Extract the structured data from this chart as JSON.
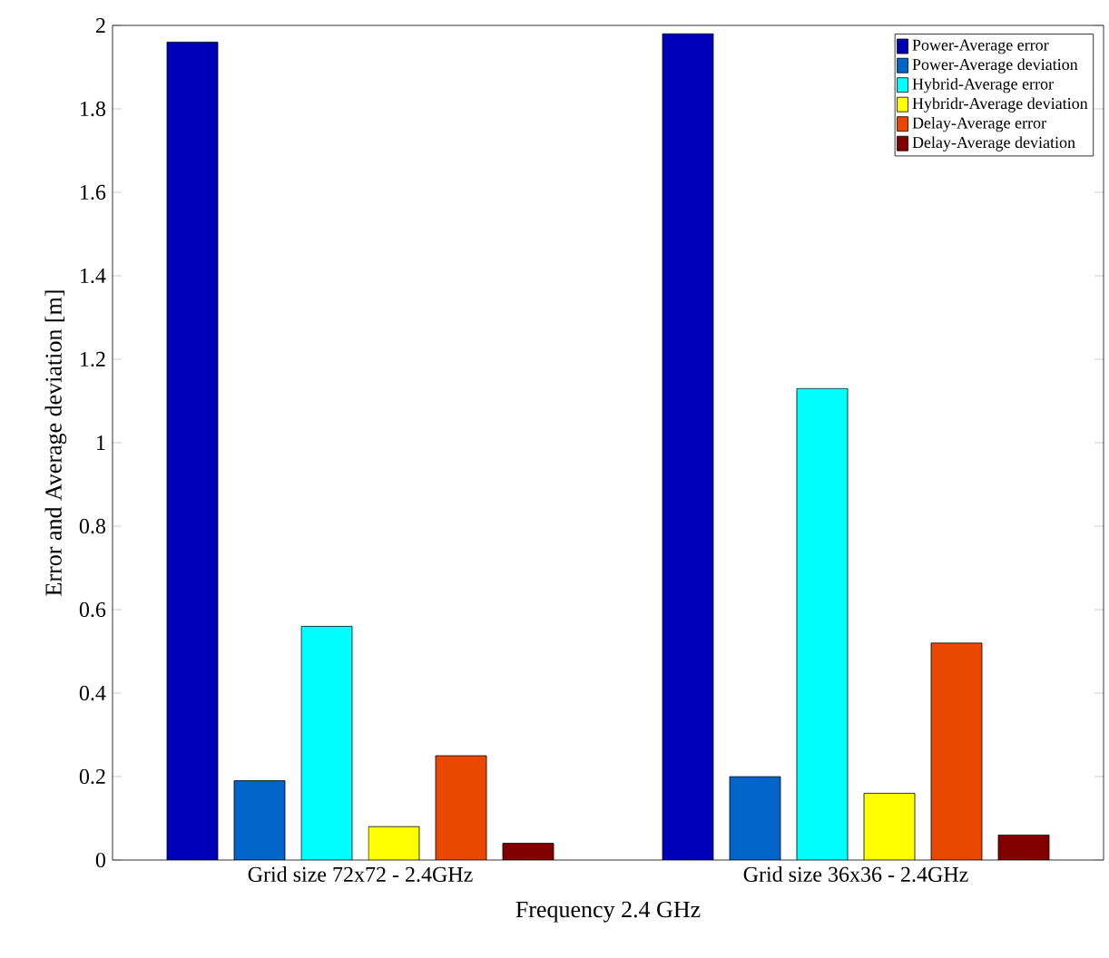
{
  "chart_data": {
    "type": "bar",
    "xlabel": "Frequency 2.4 GHz",
    "ylabel": "Error and Average deviation [m]",
    "categories": [
      "Grid size 72x72 - 2.4GHz",
      "Grid size 36x36 - 2.4GHz"
    ],
    "series": [
      {
        "name": "Power-Average error",
        "color": "#0000b8",
        "values": [
          1.96,
          1.98
        ]
      },
      {
        "name": "Power-Average deviation",
        "color": "#0064c8",
        "values": [
          0.19,
          0.2
        ]
      },
      {
        "name": "Hybrid-Average error",
        "color": "#00ffff",
        "values": [
          0.56,
          1.13
        ]
      },
      {
        "name": "Hybridr-Average deviation",
        "color": "#ffff00",
        "values": [
          0.08,
          0.16
        ]
      },
      {
        "name": "Delay-Average error",
        "color": "#e84800",
        "values": [
          0.25,
          0.52
        ]
      },
      {
        "name": "Delay-Average deviation",
        "color": "#800000",
        "values": [
          0.04,
          0.06
        ]
      }
    ],
    "ylim": [
      0,
      2
    ],
    "yticks": [
      0,
      0.2,
      0.4,
      0.6,
      0.8,
      1,
      1.2,
      1.4,
      1.6,
      1.8,
      2
    ],
    "grid": false,
    "legend": "top right"
  }
}
